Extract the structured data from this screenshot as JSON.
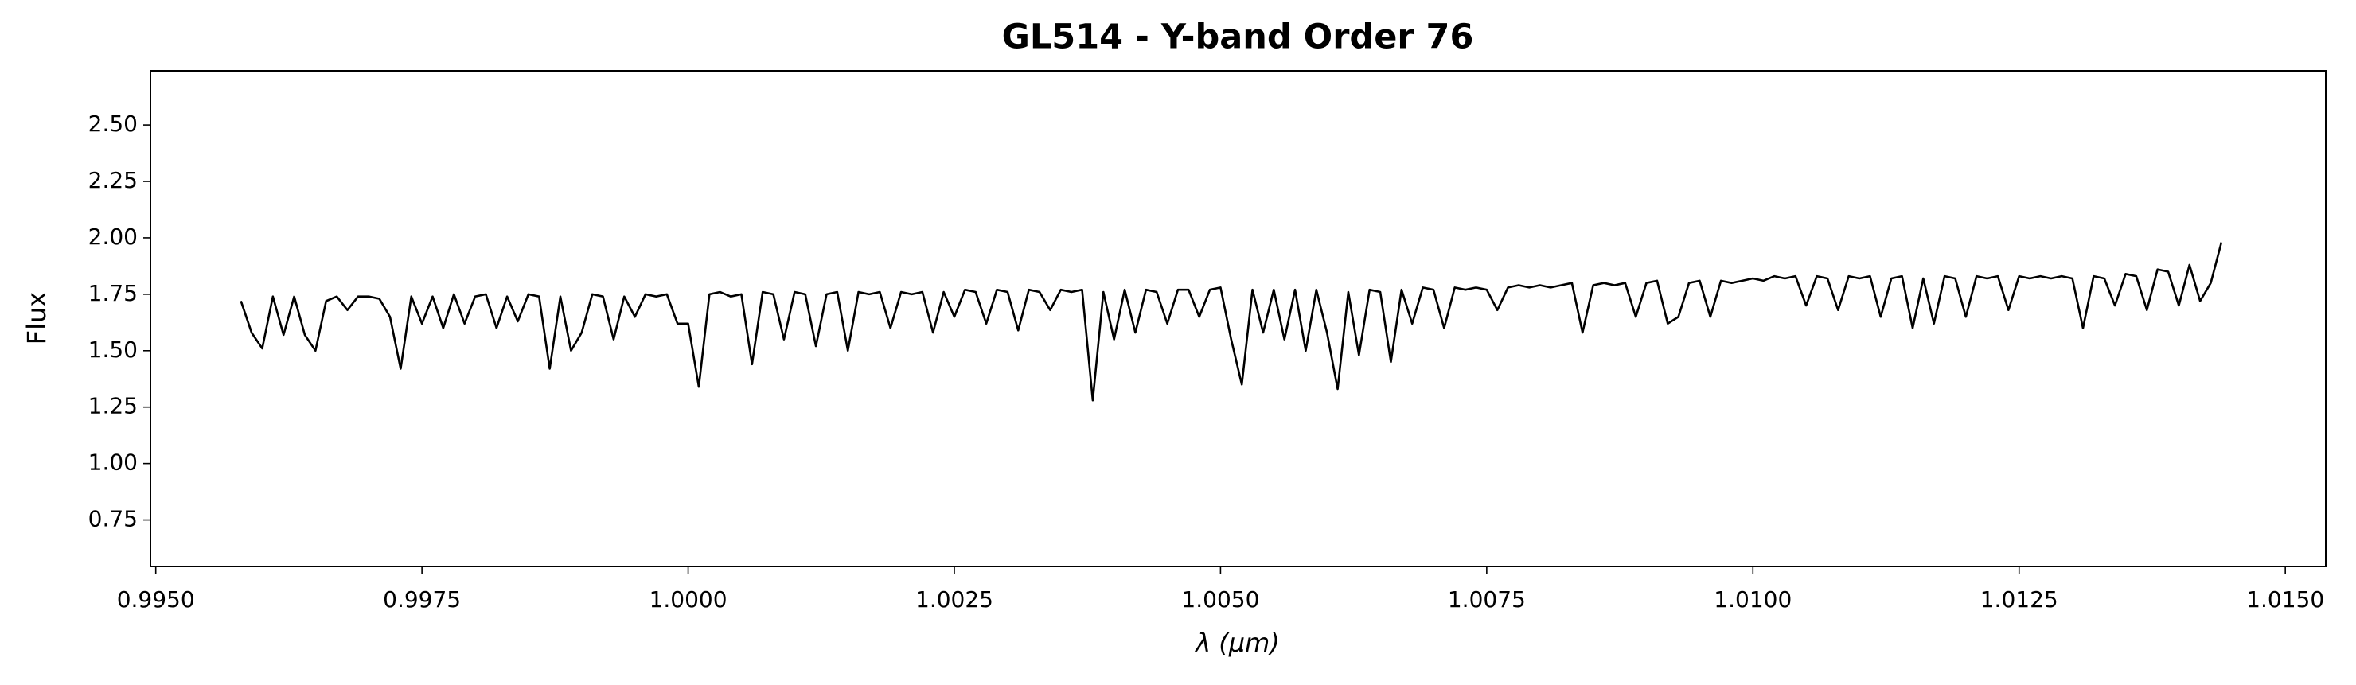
{
  "chart_data": {
    "type": "line",
    "title": "GL514 - Y-band Order 76",
    "x_label": "λ (μm)",
    "y_label": "Flux",
    "color": "#000000",
    "x": [
      0.9958,
      0.9959,
      0.996,
      0.9961,
      0.9962,
      0.9963,
      0.9964,
      0.9965,
      0.9966,
      0.9967,
      0.9968,
      0.9969,
      0.997,
      0.9971,
      0.9972,
      0.9973,
      0.9974,
      0.9975,
      0.9976,
      0.9977,
      0.9978,
      0.9979,
      0.998,
      0.9981,
      0.9982,
      0.9983,
      0.9984,
      0.9985,
      0.9986,
      0.9987,
      0.9988,
      0.9989,
      0.999,
      0.9991,
      0.9992,
      0.9993,
      0.9994,
      0.9995,
      0.9996,
      0.9997,
      0.9998,
      0.9999,
      1.0,
      1.0001,
      1.0002,
      1.0003,
      1.0004,
      1.0005,
      1.0006,
      1.0007,
      1.0008,
      1.0009,
      1.001,
      1.0011,
      1.0012,
      1.0013,
      1.0014,
      1.0015,
      1.0016,
      1.0017,
      1.0018,
      1.0019,
      1.002,
      1.0021,
      1.0022,
      1.0023,
      1.0024,
      1.0025,
      1.0026,
      1.0027,
      1.0028,
      1.0029,
      1.003,
      1.0031,
      1.0032,
      1.0033,
      1.0034,
      1.0035,
      1.0036,
      1.0037,
      1.0038,
      1.0039,
      1.004,
      1.0041,
      1.0042,
      1.0043,
      1.0044,
      1.0045,
      1.0046,
      1.0047,
      1.0048,
      1.0049,
      1.005,
      1.0051,
      1.0052,
      1.0053,
      1.0054,
      1.0055,
      1.0056,
      1.0057,
      1.0058,
      1.0059,
      1.006,
      1.0061,
      1.0062,
      1.0063,
      1.0064,
      1.0065,
      1.0066,
      1.0067,
      1.0068,
      1.0069,
      1.007,
      1.0071,
      1.0072,
      1.0073,
      1.0074,
      1.0075,
      1.0076,
      1.0077,
      1.0078,
      1.0079,
      1.008,
      1.0081,
      1.0082,
      1.0083,
      1.0084,
      1.0085,
      1.0086,
      1.0087,
      1.0088,
      1.0089,
      1.009,
      1.0091,
      1.0092,
      1.0093,
      1.0094,
      1.0095,
      1.0096,
      1.0097,
      1.0098,
      1.0099,
      1.01,
      1.0101,
      1.0102,
      1.0103,
      1.0104,
      1.0105,
      1.0106,
      1.0107,
      1.0108,
      1.0109,
      1.011,
      1.0111,
      1.0112,
      1.0113,
      1.0114,
      1.0115,
      1.0116,
      1.0117,
      1.0118,
      1.0119,
      1.012,
      1.0121,
      1.0122,
      1.0123,
      1.0124,
      1.0125,
      1.0126,
      1.0127,
      1.0128,
      1.0129,
      1.013,
      1.0131,
      1.0132,
      1.0133,
      1.0134,
      1.0135,
      1.0136,
      1.0137,
      1.0138,
      1.0139,
      1.014,
      1.0141,
      1.0142,
      1.0143,
      1.0144
    ],
    "values": [
      1.72,
      1.58,
      1.51,
      1.74,
      1.57,
      1.74,
      1.57,
      1.5,
      1.72,
      1.74,
      1.68,
      1.74,
      1.74,
      1.73,
      1.65,
      1.42,
      1.74,
      1.62,
      1.74,
      1.6,
      1.75,
      1.62,
      1.74,
      1.75,
      1.6,
      1.74,
      1.63,
      1.75,
      1.74,
      1.42,
      1.74,
      1.5,
      1.58,
      1.75,
      1.74,
      1.55,
      1.74,
      1.65,
      1.75,
      1.74,
      1.75,
      1.62,
      1.62,
      1.34,
      1.75,
      1.76,
      1.74,
      1.75,
      1.44,
      1.76,
      1.75,
      1.55,
      1.76,
      1.75,
      1.52,
      1.75,
      1.76,
      1.5,
      1.76,
      1.75,
      1.76,
      1.6,
      1.76,
      1.75,
      1.76,
      1.58,
      1.76,
      1.65,
      1.77,
      1.76,
      1.62,
      1.77,
      1.76,
      1.59,
      1.77,
      1.76,
      1.68,
      1.77,
      1.76,
      1.77,
      1.28,
      1.76,
      1.55,
      1.77,
      1.58,
      1.77,
      1.76,
      1.62,
      1.77,
      1.77,
      1.65,
      1.77,
      1.78,
      1.55,
      1.35,
      1.77,
      1.58,
      1.77,
      1.55,
      1.77,
      1.5,
      1.77,
      1.58,
      1.33,
      1.76,
      1.48,
      1.77,
      1.76,
      1.45,
      1.77,
      1.62,
      1.78,
      1.77,
      1.6,
      1.78,
      1.77,
      1.78,
      1.77,
      1.68,
      1.78,
      1.79,
      1.78,
      1.79,
      1.78,
      1.79,
      1.8,
      1.58,
      1.79,
      1.8,
      1.79,
      1.8,
      1.65,
      1.8,
      1.81,
      1.62,
      1.65,
      1.8,
      1.81,
      1.65,
      1.81,
      1.8,
      1.81,
      1.82,
      1.81,
      1.83,
      1.82,
      1.83,
      1.7,
      1.83,
      1.82,
      1.68,
      1.83,
      1.82,
      1.83,
      1.65,
      1.82,
      1.83,
      1.6,
      1.82,
      1.62,
      1.83,
      1.82,
      1.65,
      1.83,
      1.82,
      1.83,
      1.68,
      1.83,
      1.82,
      1.83,
      1.82,
      1.83,
      1.82,
      1.6,
      1.83,
      1.82,
      1.7,
      1.84,
      1.83,
      1.68,
      1.86,
      1.85,
      1.7,
      1.88,
      1.72,
      1.8,
      1.98
    ],
    "xlim": [
      0.99495,
      1.01538
    ],
    "ylim": [
      0.544,
      2.74
    ],
    "xticks": [
      {
        "value": 0.995,
        "label": "0.9950"
      },
      0.9975,
      {
        "value": 1.0,
        "label": "1.0000"
      },
      1.0025,
      {
        "value": 1.005,
        "label": "1.0050"
      },
      1.0075,
      {
        "value": 1.01,
        "label": "1.0100"
      },
      1.0125,
      {
        "value": 1.015,
        "label": "1.0150"
      }
    ],
    "yticks": [
      0.75,
      {
        "value": 1.0,
        "label": "1.00"
      },
      1.25,
      {
        "value": 1.5,
        "label": "1.50"
      },
      1.75,
      {
        "value": 2.0,
        "label": "2.00"
      },
      2.25,
      {
        "value": 2.5,
        "label": "2.50"
      }
    ]
  }
}
